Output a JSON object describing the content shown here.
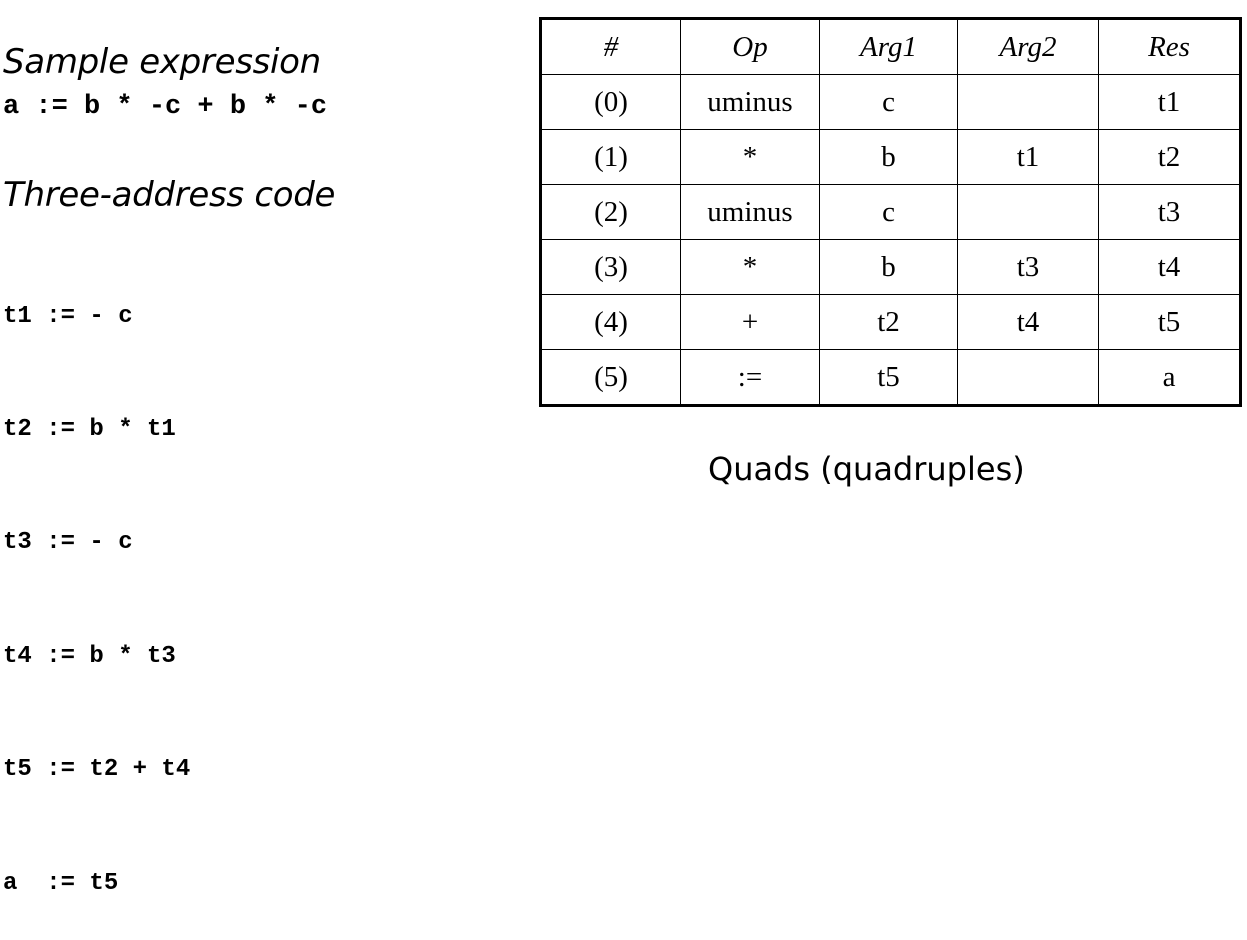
{
  "sample_expression": {
    "heading": "Sample expression",
    "code": "a := b * -c + b * -c"
  },
  "three_address_code": {
    "heading": "Three-address code",
    "lines": [
      "t1 := - c",
      "t2 := b * t1",
      "t3 := - c",
      "t4 := b * t3",
      "t5 := t2 + t4",
      "a  := t5"
    ]
  },
  "quads_table": {
    "headers": [
      "#",
      "Op",
      "Arg1",
      "Arg2",
      "Res"
    ],
    "rows": [
      {
        "num": "(0)",
        "op": "uminus",
        "arg1": "c",
        "arg2": "",
        "res": "t1"
      },
      {
        "num": "(1)",
        "op": "*",
        "arg1": "b",
        "arg2": "t1",
        "res": "t2"
      },
      {
        "num": "(2)",
        "op": "uminus",
        "arg1": "c",
        "arg2": "",
        "res": "t3"
      },
      {
        "num": "(3)",
        "op": "*",
        "arg1": "b",
        "arg2": "t3",
        "res": "t4"
      },
      {
        "num": "(4)",
        "op": "+",
        "arg1": "t2",
        "arg2": "t4",
        "res": "t5"
      },
      {
        "num": "(5)",
        "op": ":=",
        "arg1": "t5",
        "arg2": "",
        "res": "a"
      }
    ],
    "caption": "Quads (quadruples)"
  }
}
